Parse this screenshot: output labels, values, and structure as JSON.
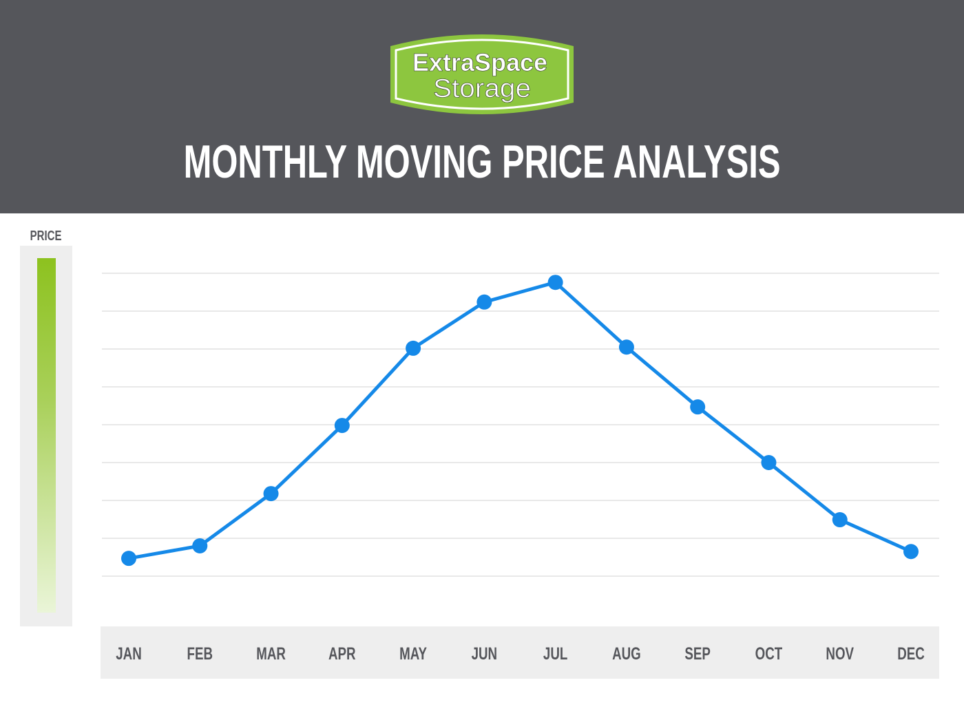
{
  "header": {
    "logo_text": [
      "ExtraSpace",
      "Storage"
    ],
    "logo_colors": {
      "green": "#8dc63f",
      "border": "#ffffff"
    },
    "background_color": "#55565b"
  },
  "chart_data": {
    "type": "line",
    "title": "MONTHLY MOVING PRICE ANALYSIS",
    "ylabel": "PRICE",
    "xlabel": "",
    "categories": [
      "JAN",
      "FEB",
      "MAR",
      "APR",
      "MAY",
      "JUN",
      "JUL",
      "AUG",
      "SEP",
      "OCT",
      "NOV",
      "DEC"
    ],
    "values": [
      0.47,
      0.8,
      2.18,
      3.98,
      6.02,
      7.24,
      7.76,
      6.05,
      4.47,
      3.0,
      1.49,
      0.65
    ],
    "ylim": [
      0,
      8
    ],
    "y_tick_labels_shown": false,
    "grid": true,
    "line_color": "#1589e8",
    "legend_gradient": [
      "#8dc21f",
      "#eaf5d8"
    ]
  }
}
